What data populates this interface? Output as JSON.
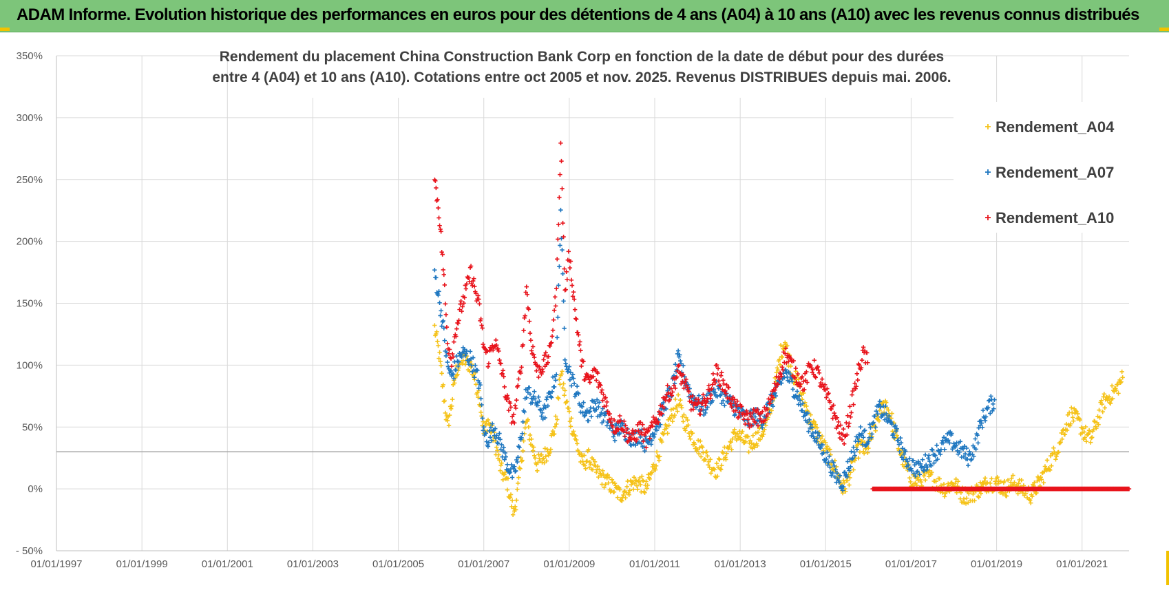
{
  "header": {
    "title": "ADAM Informe. Evolution historique des performances en euros pour des détentions de 4 ans (A04) à 10 ans (A10) avec les revenus connus distribués"
  },
  "colors": {
    "header_bg": "#7dc57a",
    "accent": "#f2c200",
    "A04": "#f5c218",
    "A07": "#1f77c0",
    "A10": "#e8141c"
  },
  "chart_data": {
    "type": "scatter",
    "title_lines": [
      "Rendement du placement China Construction Bank Corp en fonction de la date de début pour des durées",
      "entre 4 (A04) et 10 ans (A10).  Cotations entre oct 2005 et nov. 2025. Revenus DISTRIBUES depuis mai. 2006."
    ],
    "xlabel": "",
    "ylabel": "",
    "ylim": [
      -50,
      350
    ],
    "yticks": [
      -50,
      0,
      50,
      100,
      150,
      200,
      250,
      300,
      350
    ],
    "ytick_labels": [
      "- 50%",
      "0%",
      "50%",
      "100%",
      "150%",
      "200%",
      "250%",
      "300%",
      "350%"
    ],
    "xlim": [
      1997.0,
      2022.1
    ],
    "xticks": [
      1997,
      1999,
      2001,
      2003,
      2005,
      2007,
      2009,
      2011,
      2013,
      2015,
      2017,
      2019,
      2021
    ],
    "xtick_labels": [
      "01/01/1997",
      "01/01/1999",
      "01/01/2001",
      "01/01/2003",
      "01/01/2005",
      "01/01/2007",
      "01/01/2009",
      "01/01/2011",
      "01/01/2013",
      "01/01/2015",
      "01/01/2017",
      "01/01/2019",
      "01/01/2021"
    ],
    "reference_line": 30,
    "grid": true,
    "legend_position": "top-right",
    "series": [
      {
        "name": "Rendement_A04",
        "color": "#f5c218",
        "points": [
          [
            2005.85,
            130
          ],
          [
            2005.95,
            110
          ],
          [
            2006.05,
            80
          ],
          [
            2006.15,
            50
          ],
          [
            2006.25,
            70
          ],
          [
            2006.35,
            95
          ],
          [
            2006.5,
            105
          ],
          [
            2006.7,
            100
          ],
          [
            2006.9,
            75
          ],
          [
            2007.0,
            45
          ],
          [
            2007.1,
            55
          ],
          [
            2007.25,
            40
          ],
          [
            2007.4,
            15
          ],
          [
            2007.55,
            5
          ],
          [
            2007.7,
            -20
          ],
          [
            2007.8,
            0
          ],
          [
            2007.9,
            30
          ],
          [
            2008.0,
            55
          ],
          [
            2008.1,
            40
          ],
          [
            2008.25,
            20
          ],
          [
            2008.4,
            25
          ],
          [
            2008.55,
            35
          ],
          [
            2008.7,
            55
          ],
          [
            2008.8,
            95
          ],
          [
            2008.9,
            75
          ],
          [
            2009.0,
            60
          ],
          [
            2009.15,
            40
          ],
          [
            2009.3,
            20
          ],
          [
            2009.45,
            25
          ],
          [
            2009.6,
            15
          ],
          [
            2009.75,
            10
          ],
          [
            2009.9,
            5
          ],
          [
            2010.05,
            0
          ],
          [
            2010.2,
            -5
          ],
          [
            2010.35,
            0
          ],
          [
            2010.5,
            5
          ],
          [
            2010.65,
            5
          ],
          [
            2010.8,
            0
          ],
          [
            2010.95,
            15
          ],
          [
            2011.1,
            30
          ],
          [
            2011.25,
            45
          ],
          [
            2011.4,
            60
          ],
          [
            2011.55,
            70
          ],
          [
            2011.7,
            55
          ],
          [
            2011.85,
            45
          ],
          [
            2012.0,
            35
          ],
          [
            2012.15,
            30
          ],
          [
            2012.3,
            20
          ],
          [
            2012.45,
            15
          ],
          [
            2012.6,
            25
          ],
          [
            2012.75,
            35
          ],
          [
            2012.9,
            45
          ],
          [
            2013.05,
            40
          ],
          [
            2013.2,
            35
          ],
          [
            2013.35,
            40
          ],
          [
            2013.5,
            45
          ],
          [
            2013.65,
            55
          ],
          [
            2013.8,
            80
          ],
          [
            2013.95,
            110
          ],
          [
            2014.05,
            120
          ],
          [
            2014.2,
            95
          ],
          [
            2014.35,
            85
          ],
          [
            2014.5,
            70
          ],
          [
            2014.65,
            55
          ],
          [
            2014.8,
            45
          ],
          [
            2014.95,
            35
          ],
          [
            2015.1,
            25
          ],
          [
            2015.25,
            15
          ],
          [
            2015.4,
            0
          ],
          [
            2015.5,
            5
          ],
          [
            2015.65,
            20
          ],
          [
            2015.8,
            35
          ],
          [
            2015.95,
            30
          ],
          [
            2016.1,
            45
          ],
          [
            2016.25,
            60
          ],
          [
            2016.4,
            70
          ],
          [
            2016.55,
            55
          ],
          [
            2016.7,
            35
          ],
          [
            2016.85,
            20
          ],
          [
            2017.0,
            8
          ],
          [
            2017.2,
            5
          ],
          [
            2017.4,
            10
          ],
          [
            2017.6,
            5
          ],
          [
            2017.8,
            0
          ],
          [
            2018.0,
            5
          ],
          [
            2018.2,
            -5
          ],
          [
            2018.4,
            -5
          ],
          [
            2018.6,
            0
          ],
          [
            2018.8,
            5
          ],
          [
            2019.0,
            5
          ],
          [
            2019.2,
            0
          ],
          [
            2019.4,
            5
          ],
          [
            2019.6,
            0
          ],
          [
            2019.8,
            -5
          ],
          [
            2020.0,
            5
          ],
          [
            2020.15,
            15
          ],
          [
            2020.3,
            25
          ],
          [
            2020.45,
            35
          ],
          [
            2020.6,
            50
          ],
          [
            2020.75,
            60
          ],
          [
            2020.9,
            55
          ],
          [
            2021.05,
            45
          ],
          [
            2021.2,
            40
          ],
          [
            2021.35,
            55
          ],
          [
            2021.5,
            70
          ],
          [
            2021.65,
            75
          ],
          [
            2021.8,
            80
          ],
          [
            2021.95,
            90
          ]
        ]
      },
      {
        "name": "Rendement_A07",
        "color": "#1f77c0",
        "points": [
          [
            2005.85,
            175
          ],
          [
            2005.95,
            155
          ],
          [
            2006.05,
            130
          ],
          [
            2006.15,
            100
          ],
          [
            2006.25,
            90
          ],
          [
            2006.35,
            100
          ],
          [
            2006.5,
            110
          ],
          [
            2006.7,
            105
          ],
          [
            2006.9,
            85
          ],
          [
            2007.0,
            45
          ],
          [
            2007.1,
            40
          ],
          [
            2007.25,
            50
          ],
          [
            2007.4,
            35
          ],
          [
            2007.55,
            20
          ],
          [
            2007.7,
            10
          ],
          [
            2007.8,
            25
          ],
          [
            2007.9,
            50
          ],
          [
            2008.0,
            80
          ],
          [
            2008.1,
            75
          ],
          [
            2008.25,
            70
          ],
          [
            2008.4,
            60
          ],
          [
            2008.55,
            75
          ],
          [
            2008.7,
            95
          ],
          [
            2008.8,
            225
          ],
          [
            2008.9,
            110
          ],
          [
            2009.0,
            95
          ],
          [
            2009.15,
            80
          ],
          [
            2009.3,
            65
          ],
          [
            2009.45,
            60
          ],
          [
            2009.6,
            70
          ],
          [
            2009.75,
            60
          ],
          [
            2009.9,
            55
          ],
          [
            2010.05,
            45
          ],
          [
            2010.2,
            50
          ],
          [
            2010.35,
            45
          ],
          [
            2010.5,
            40
          ],
          [
            2010.65,
            45
          ],
          [
            2010.8,
            35
          ],
          [
            2010.95,
            45
          ],
          [
            2011.1,
            55
          ],
          [
            2011.25,
            70
          ],
          [
            2011.4,
            80
          ],
          [
            2011.55,
            105
          ],
          [
            2011.7,
            90
          ],
          [
            2011.85,
            75
          ],
          [
            2012.0,
            70
          ],
          [
            2012.15,
            65
          ],
          [
            2012.3,
            75
          ],
          [
            2012.45,
            80
          ],
          [
            2012.6,
            75
          ],
          [
            2012.75,
            70
          ],
          [
            2012.9,
            65
          ],
          [
            2013.05,
            60
          ],
          [
            2013.2,
            55
          ],
          [
            2013.35,
            60
          ],
          [
            2013.5,
            55
          ],
          [
            2013.65,
            65
          ],
          [
            2013.8,
            75
          ],
          [
            2013.95,
            85
          ],
          [
            2014.05,
            95
          ],
          [
            2014.2,
            85
          ],
          [
            2014.35,
            75
          ],
          [
            2014.5,
            60
          ],
          [
            2014.65,
            50
          ],
          [
            2014.8,
            40
          ],
          [
            2014.95,
            30
          ],
          [
            2015.1,
            20
          ],
          [
            2015.25,
            10
          ],
          [
            2015.4,
            5
          ],
          [
            2015.5,
            15
          ],
          [
            2015.65,
            30
          ],
          [
            2015.8,
            45
          ],
          [
            2015.95,
            40
          ],
          [
            2016.1,
            50
          ],
          [
            2016.25,
            65
          ],
          [
            2016.4,
            60
          ],
          [
            2016.55,
            50
          ],
          [
            2016.7,
            40
          ],
          [
            2016.85,
            25
          ],
          [
            2017.0,
            20
          ],
          [
            2017.15,
            15
          ],
          [
            2017.3,
            20
          ],
          [
            2017.45,
            25
          ],
          [
            2017.6,
            30
          ],
          [
            2017.75,
            35
          ],
          [
            2017.9,
            40
          ],
          [
            2018.05,
            35
          ],
          [
            2018.2,
            30
          ],
          [
            2018.35,
            25
          ],
          [
            2018.5,
            35
          ],
          [
            2018.65,
            55
          ],
          [
            2018.8,
            65
          ],
          [
            2018.95,
            72
          ]
        ]
      },
      {
        "name": "Rendement_A10",
        "color": "#e8141c",
        "points": [
          [
            2005.85,
            250
          ],
          [
            2005.95,
            225
          ],
          [
            2006.05,
            180
          ],
          [
            2006.15,
            120
          ],
          [
            2006.25,
            105
          ],
          [
            2006.35,
            130
          ],
          [
            2006.5,
            150
          ],
          [
            2006.7,
            175
          ],
          [
            2006.9,
            145
          ],
          [
            2007.0,
            115
          ],
          [
            2007.1,
            105
          ],
          [
            2007.25,
            120
          ],
          [
            2007.4,
            100
          ],
          [
            2007.55,
            70
          ],
          [
            2007.7,
            55
          ],
          [
            2007.8,
            80
          ],
          [
            2007.9,
            110
          ],
          [
            2008.0,
            165
          ],
          [
            2008.1,
            120
          ],
          [
            2008.25,
            95
          ],
          [
            2008.4,
            100
          ],
          [
            2008.55,
            110
          ],
          [
            2008.7,
            160
          ],
          [
            2008.8,
            280
          ],
          [
            2008.9,
            160
          ],
          [
            2009.0,
            190
          ],
          [
            2009.15,
            140
          ],
          [
            2009.3,
            100
          ],
          [
            2009.45,
            85
          ],
          [
            2009.6,
            95
          ],
          [
            2009.75,
            80
          ],
          [
            2009.9,
            65
          ],
          [
            2010.05,
            50
          ],
          [
            2010.2,
            55
          ],
          [
            2010.35,
            45
          ],
          [
            2010.5,
            40
          ],
          [
            2010.65,
            50
          ],
          [
            2010.8,
            40
          ],
          [
            2010.95,
            50
          ],
          [
            2011.1,
            60
          ],
          [
            2011.25,
            75
          ],
          [
            2011.4,
            80
          ],
          [
            2011.55,
            95
          ],
          [
            2011.7,
            85
          ],
          [
            2011.85,
            70
          ],
          [
            2012.0,
            65
          ],
          [
            2012.15,
            70
          ],
          [
            2012.3,
            80
          ],
          [
            2012.45,
            95
          ],
          [
            2012.6,
            85
          ],
          [
            2012.75,
            75
          ],
          [
            2012.9,
            65
          ],
          [
            2013.05,
            60
          ],
          [
            2013.2,
            55
          ],
          [
            2013.35,
            60
          ],
          [
            2013.5,
            55
          ],
          [
            2013.65,
            65
          ],
          [
            2013.8,
            80
          ],
          [
            2013.95,
            95
          ],
          [
            2014.05,
            110
          ],
          [
            2014.2,
            100
          ],
          [
            2014.35,
            90
          ],
          [
            2014.5,
            85
          ],
          [
            2014.65,
            100
          ],
          [
            2014.8,
            95
          ],
          [
            2014.95,
            80
          ],
          [
            2015.1,
            70
          ],
          [
            2015.25,
            55
          ],
          [
            2015.4,
            40
          ],
          [
            2015.5,
            50
          ],
          [
            2015.65,
            75
          ],
          [
            2015.8,
            100
          ],
          [
            2015.9,
            110
          ],
          [
            2016.0,
            100
          ],
          [
            2016.08,
            0
          ]
        ],
        "flat_segment": {
          "x_start": 2016.1,
          "x_end": 2022.1,
          "value": 0
        }
      }
    ]
  }
}
